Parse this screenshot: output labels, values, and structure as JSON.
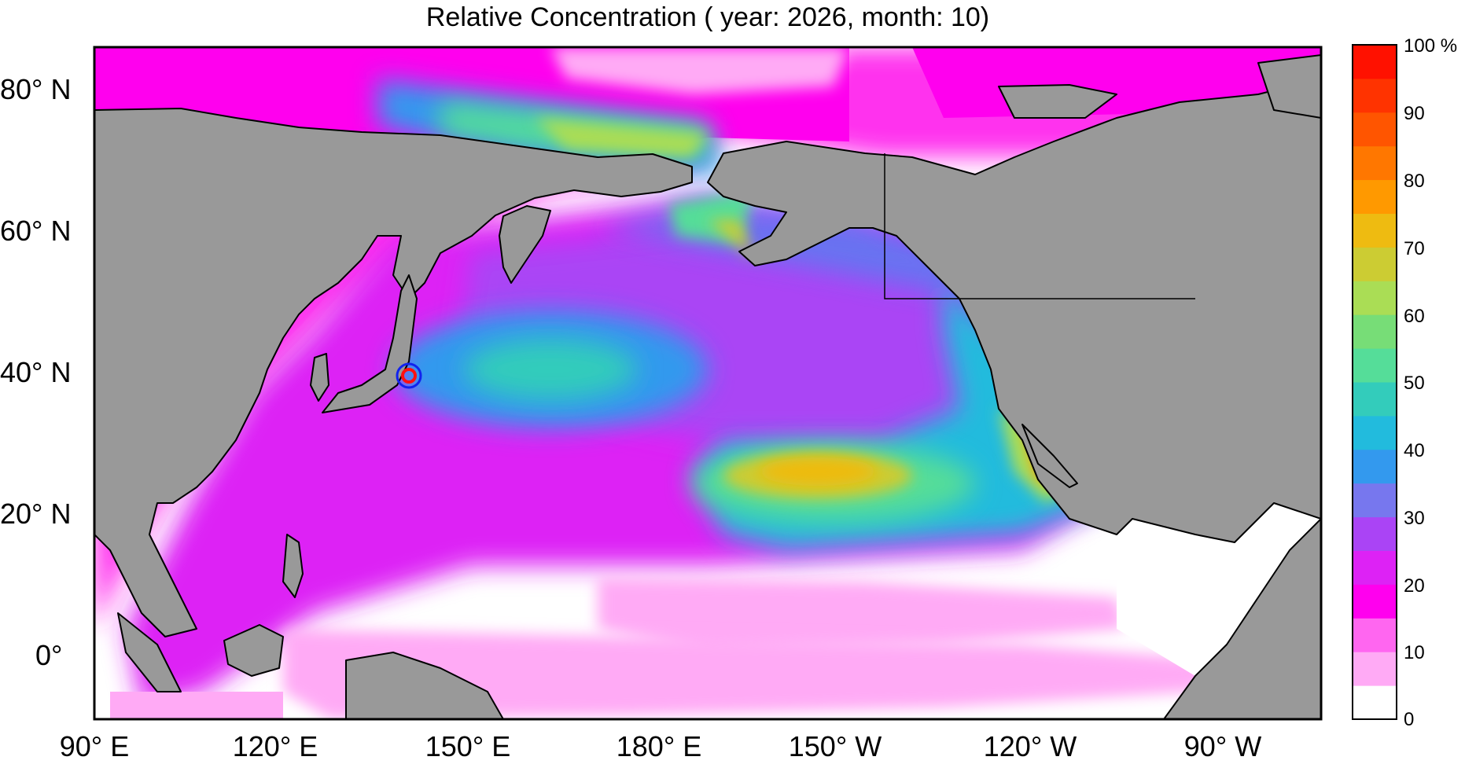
{
  "title": "Relative Concentration ( year: 2026, month: 10)",
  "map": {
    "lat_labels": [
      "80° N",
      "60° N",
      "40° N",
      "20° N",
      "0°"
    ],
    "lon_labels": [
      "90° E",
      "120° E",
      "150° E",
      "180° E",
      "150° W",
      "120° W",
      "90° W"
    ],
    "lat_range": [
      -10,
      85
    ],
    "lon_range": [
      90,
      275
    ],
    "source_marker": {
      "lon": 141.0,
      "lat": 37.4
    }
  },
  "colorbar": {
    "labels": [
      "100 %",
      "90",
      "80",
      "70",
      "60",
      "50",
      "40",
      "30",
      "20",
      "10",
      "0"
    ],
    "colors": [
      "#ffffff",
      "#ffaaf5",
      "#ff66f0",
      "#ff00ee",
      "#dd22f5",
      "#aa44f5",
      "#7777ee",
      "#3399ee",
      "#22bbdd",
      "#33ccbb",
      "#55dd99",
      "#77dd77",
      "#aadd55",
      "#cccc33",
      "#eebb11",
      "#ff9900",
      "#ff7700",
      "#ff5500",
      "#ff3300",
      "#ff1100"
    ]
  },
  "colors": {
    "land": "#999999",
    "frame": "#000000",
    "marker_outer": "#1122ee",
    "marker_inner": "#ff1111"
  }
}
